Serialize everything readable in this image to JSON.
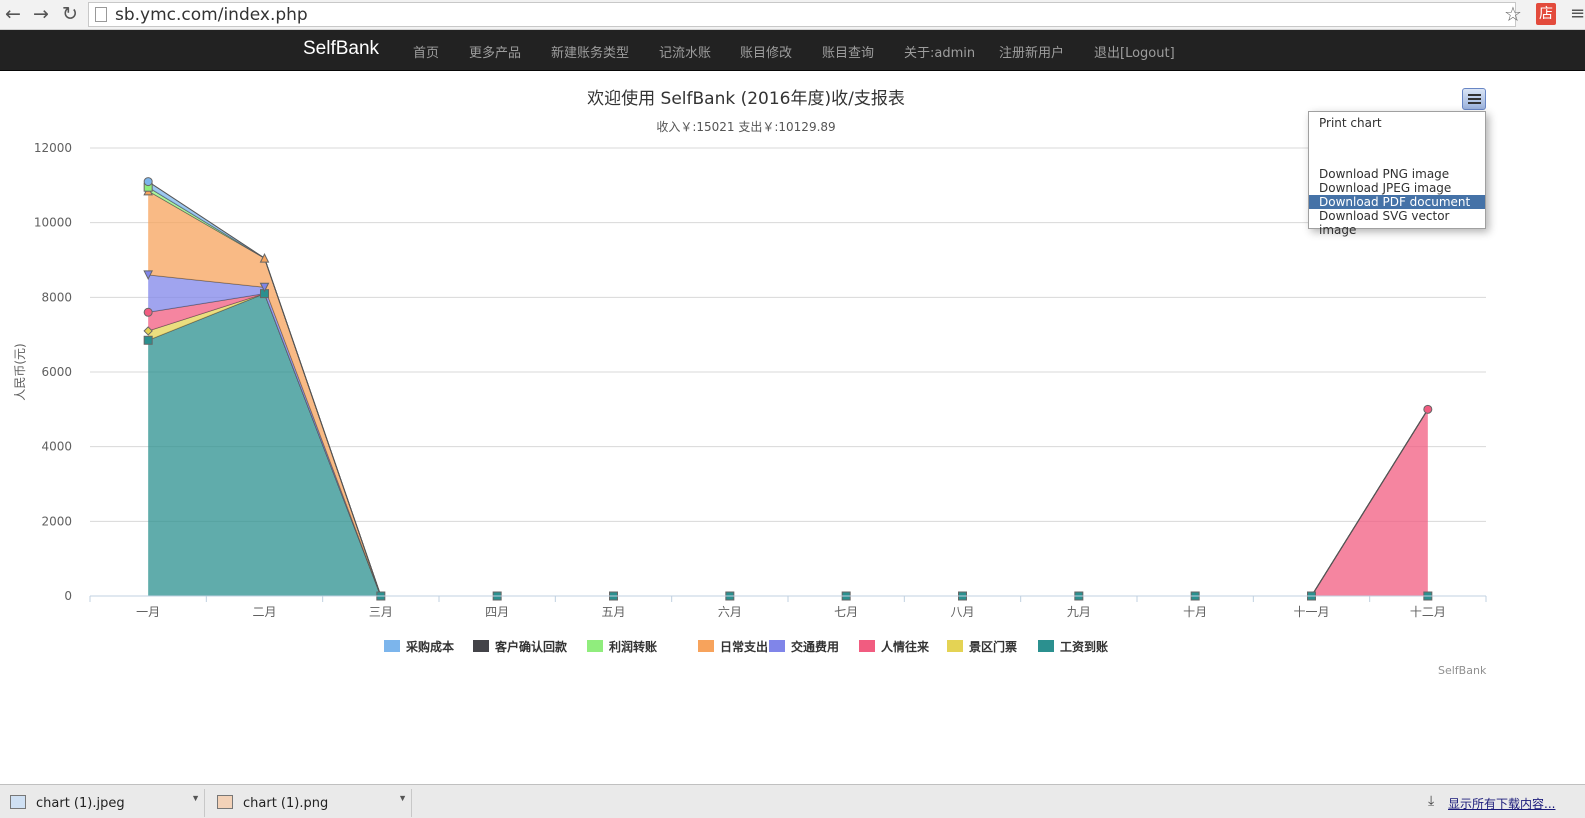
{
  "browser": {
    "url": "sb.ymc.com/index.php",
    "back_icon": "back-arrow-icon",
    "forward_icon": "forward-arrow-icon",
    "reload_icon": "reload-icon",
    "ext_glyph": "店"
  },
  "navbar": {
    "brand": "SelfBank",
    "items": [
      "首页",
      "更多产品",
      "新建账务类型",
      "记流水账",
      "账目修改",
      "账目查询",
      "关于:admin",
      "注册新用户",
      "退出[Logout]"
    ]
  },
  "chart": {
    "title": "欢迎使用 SelfBank (2016年度)收/支报表",
    "subtitle": "收入￥:15021 支出￥:10129.89",
    "credits": "SelfBank",
    "export_menu": {
      "items": [
        "Print chart",
        "Download PNG image",
        "Download JPEG image",
        "Download PDF document",
        "Download SVG vector image"
      ],
      "highlighted": "Download PDF document"
    }
  },
  "chart_data": {
    "type": "area",
    "stacked": true,
    "title": "欢迎使用 SelfBank (2016年度)收/支报表",
    "subtitle": "收入￥:15021 支出￥:10129.89",
    "ylabel": "人民币(元)",
    "xlabel": "",
    "ylim": [
      0,
      12000
    ],
    "yticks": [
      0,
      2000,
      4000,
      6000,
      8000,
      10000,
      12000
    ],
    "categories": [
      "一月",
      "二月",
      "三月",
      "四月",
      "五月",
      "六月",
      "七月",
      "八月",
      "九月",
      "十月",
      "十一月",
      "十二月"
    ],
    "legend_position": "bottom",
    "grid": true,
    "series": [
      {
        "name": "采购成本",
        "color": "#7cb5ec",
        "marker": "circle",
        "values": [
          150,
          0,
          0,
          0,
          0,
          0,
          0,
          0,
          0,
          0,
          0,
          0
        ]
      },
      {
        "name": "客户确认回款",
        "color": "#434348",
        "marker": "diamond",
        "values": [
          0,
          0,
          0,
          0,
          0,
          0,
          0,
          0,
          0,
          0,
          0,
          0
        ]
      },
      {
        "name": "利润转账",
        "color": "#90ed7d",
        "marker": "square",
        "values": [
          100,
          0,
          0,
          0,
          0,
          0,
          0,
          0,
          0,
          0,
          0,
          0
        ]
      },
      {
        "name": "日常支出",
        "color": "#f7a35c",
        "marker": "triangle",
        "values": [
          2250,
          780,
          0,
          0,
          0,
          0,
          0,
          0,
          0,
          0,
          0,
          0
        ]
      },
      {
        "name": "交通费用",
        "color": "#8085e9",
        "marker": "triangle-down",
        "values": [
          1000,
          170,
          0,
          0,
          0,
          0,
          0,
          0,
          0,
          0,
          0,
          0
        ]
      },
      {
        "name": "人情往来",
        "color": "#f15c80",
        "marker": "circle",
        "values": [
          500,
          0,
          0,
          0,
          0,
          0,
          0,
          0,
          0,
          0,
          0,
          5000
        ]
      },
      {
        "name": "景区门票",
        "color": "#e4d354",
        "marker": "diamond",
        "values": [
          250,
          0,
          0,
          0,
          0,
          0,
          0,
          0,
          0,
          0,
          0,
          0
        ]
      },
      {
        "name": "工资到账",
        "color": "#2b908f",
        "marker": "square",
        "values": [
          6850,
          8100,
          0,
          0,
          0,
          0,
          0,
          0,
          0,
          0,
          0,
          0
        ]
      }
    ]
  },
  "downloads": {
    "items": [
      {
        "name": "chart (1).jpeg",
        "icon": "image-file-icon"
      },
      {
        "name": "chart (1).png",
        "icon": "image-file-icon"
      }
    ],
    "show_all": "显示所有下载内容..."
  }
}
